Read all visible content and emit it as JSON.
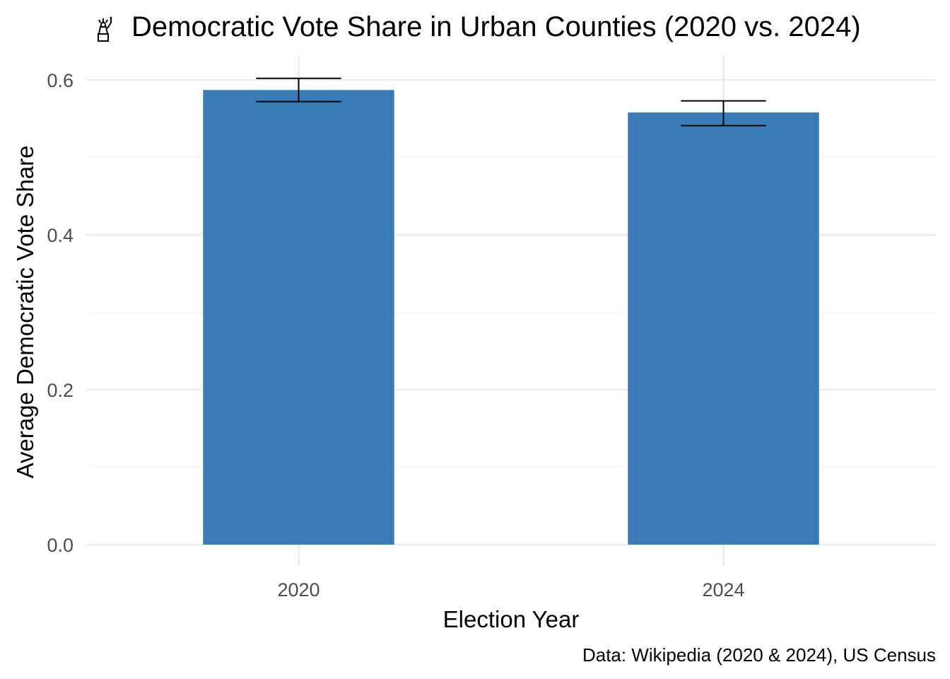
{
  "chart_data": {
    "type": "bar",
    "title": "Democratic Vote Share in Urban Counties (2020 vs. 2024)",
    "title_icon": "statue-of-liberty-icon",
    "xlabel": "Election Year",
    "ylabel": "Average Democratic Vote Share",
    "caption": "Data: Wikipedia (2020 & 2024), US Census",
    "categories": [
      "2020",
      "2024"
    ],
    "values": [
      0.587,
      0.558
    ],
    "error_low": [
      0.572,
      0.541
    ],
    "error_high": [
      0.602,
      0.573
    ],
    "ylim": [
      0,
      0.6
    ],
    "yticks": [
      0.0,
      0.2,
      0.4,
      0.6
    ],
    "ytick_labels": [
      "0.0",
      "0.2",
      "0.4",
      "0.6"
    ],
    "grid": true,
    "legend": "none",
    "bar_color": "#3A7DB6"
  }
}
